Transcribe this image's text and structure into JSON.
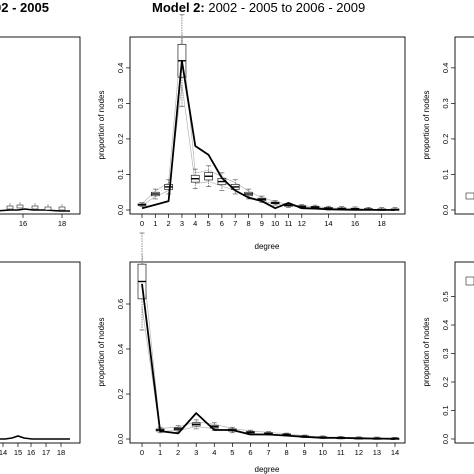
{
  "titles": {
    "left_partial": "02 - 2005",
    "center_bold": "Model 2:",
    "center_rest": " 2002 - 2005 to 2006 - 2009"
  },
  "chart_data": [
    {
      "type": "line",
      "panel": "center-top",
      "xlabel": "degree",
      "ylabel": "proportion of nodes",
      "x_ticks": [
        "0",
        "1",
        "2",
        "3",
        "4",
        "5",
        "6",
        "7",
        "8",
        "9",
        "10",
        "11",
        "12",
        "14",
        "16",
        "18"
      ],
      "y_ticks": [
        "0.0",
        "0.1",
        "0.2",
        "0.3",
        "0.4"
      ],
      "ylim": [
        0,
        0.47
      ],
      "observed": [
        0.005,
        0.015,
        0.025,
        0.42,
        0.18,
        0.155,
        0.09,
        0.055,
        0.035,
        0.025,
        0.005,
        0.02,
        0.005,
        0.004,
        0.002,
        0.001,
        0.0005,
        0.0003,
        0.0002,
        0.0001
      ],
      "simulated_median": [
        0.015,
        0.045,
        0.065,
        0.42,
        0.088,
        0.095,
        0.08,
        0.065,
        0.045,
        0.03,
        0.02,
        0.013,
        0.01,
        0.008,
        0.005,
        0.004,
        0.003,
        0.002,
        0.001,
        0.001
      ],
      "grid": false,
      "legend": "none"
    },
    {
      "type": "line",
      "panel": "center-bottom",
      "xlabel": "degree",
      "ylabel": "proportion of nodes",
      "x_ticks": [
        "0",
        "1",
        "2",
        "3",
        "4",
        "5",
        "6",
        "7",
        "8",
        "9",
        "10",
        "11",
        "12",
        "13",
        "14"
      ],
      "y_ticks": [
        "0.0",
        "0.2",
        "0.4",
        "0.6"
      ],
      "ylim": [
        0,
        0.76
      ],
      "observed": [
        0.69,
        0.035,
        0.025,
        0.115,
        0.04,
        0.04,
        0.02,
        0.02,
        0.015,
        0.01,
        0.005,
        0.005,
        0.003,
        0.002,
        0.001
      ],
      "simulated_median": [
        0.7,
        0.04,
        0.045,
        0.065,
        0.055,
        0.04,
        0.03,
        0.025,
        0.02,
        0.012,
        0.008,
        0.006,
        0.004,
        0.003,
        0.002
      ],
      "grid": false,
      "legend": "none"
    },
    {
      "type": "line",
      "panel": "left-top-partial",
      "x_ticks": [
        "16",
        "18"
      ]
    },
    {
      "type": "line",
      "panel": "left-bottom-partial",
      "x_ticks": [
        "14",
        "15",
        "16",
        "17",
        "18"
      ]
    },
    {
      "type": "line",
      "panel": "right-top-partial",
      "y_ticks": [
        "0.0",
        "0.1",
        "0.2",
        "0.3",
        "0.4"
      ]
    },
    {
      "type": "line",
      "panel": "right-bottom-partial",
      "y_ticks": [
        "0.0",
        "0.1",
        "0.2",
        "0.3",
        "0.4",
        "0.5"
      ]
    }
  ]
}
